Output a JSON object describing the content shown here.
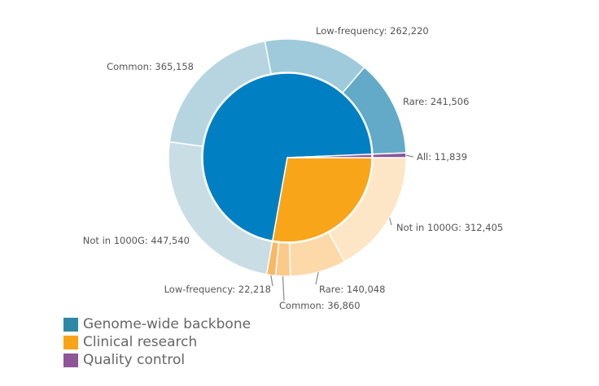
{
  "chart_data": {
    "type": "sunburst",
    "title": "",
    "start_angle_deg": 90,
    "direction": "clockwise",
    "categories": [
      {
        "name": "Clinical research",
        "color": "#f9a51a",
        "children": [
          {
            "name": "Not in 1000G",
            "value": 312405,
            "label": "Not in 1000G: 312,405",
            "color": "#fde6c6"
          },
          {
            "name": "Rare",
            "value": 140048,
            "label": "Rare: 140,048",
            "color": "#fdd9a9"
          },
          {
            "name": "Common",
            "value": 36860,
            "label": "Common: 36,860",
            "color": "#fbca8b"
          },
          {
            "name": "Low-frequency",
            "value": 22218,
            "label": "Low-frequency: 22,218",
            "color": "#f9b864"
          }
        ]
      },
      {
        "name": "Genome-wide backbone",
        "color": "#0080c3",
        "children": [
          {
            "name": "Not in 1000G",
            "value": 447540,
            "label": "Not in 1000G: 447,540",
            "color": "#c9dde5"
          },
          {
            "name": "Common",
            "value": 365158,
            "label": "Common: 365,158",
            "color": "#b6d5e1"
          },
          {
            "name": "Low-frequency",
            "value": 262220,
            "label": "Low-frequency: 262,220",
            "color": "#9ecadb"
          },
          {
            "name": "Rare",
            "value": 241506,
            "label": "Rare: 241,506",
            "color": "#62aac8"
          }
        ]
      },
      {
        "name": "Quality control",
        "color": "#8e5597",
        "children": [
          {
            "name": "All",
            "value": 11839,
            "label": "All: 11,839",
            "color": "#8e5597"
          }
        ]
      }
    ],
    "legend": {
      "placement": "bottom-left",
      "items": [
        {
          "label": "Genome-wide backbone",
          "color": "#2f87a6"
        },
        {
          "label": "Clinical research",
          "color": "#f9a31b"
        },
        {
          "label": "Quality control",
          "color": "#8e5597"
        }
      ]
    }
  }
}
